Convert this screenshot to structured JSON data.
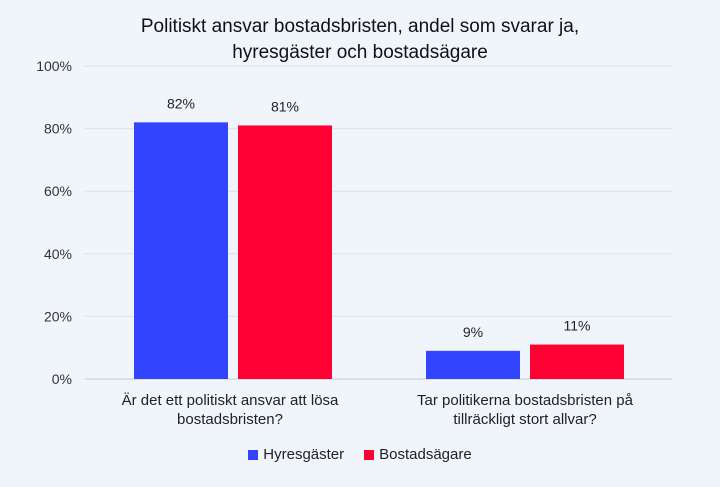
{
  "chart_data": {
    "type": "bar",
    "title_lines": [
      "Politiskt ansvar bostadsbristen, andel som svarar ja,",
      "hyresgäster och bostadsägare"
    ],
    "categories": [
      [
        "Är det ett politiskt ansvar att lösa",
        "bostadsbristen?"
      ],
      [
        "Tar politikerna bostadsbristen på",
        "tillräckligt stort allvar?"
      ]
    ],
    "series": [
      {
        "name": "Hyresgäster",
        "color": "#3344ff",
        "values": [
          82,
          9
        ]
      },
      {
        "name": "Bostadsägare",
        "color": "#ff0033",
        "values": [
          81,
          11
        ]
      }
    ],
    "ylim": [
      0,
      100
    ],
    "yticks": [
      0,
      20,
      40,
      60,
      80,
      100
    ],
    "tick_suffix": "%",
    "grid": true,
    "legend": "bottom"
  }
}
